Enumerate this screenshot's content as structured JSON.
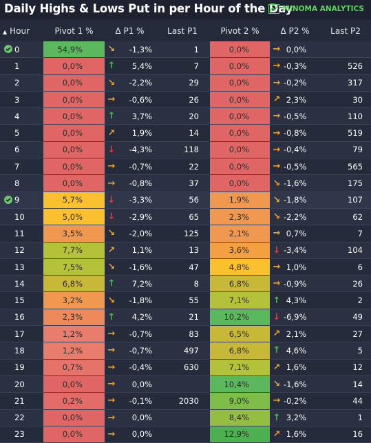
{
  "title": "Daily Highs & Lows Put in per Hour of the Day",
  "brand": "MINOMA ANALYTICS",
  "colors": {
    "red": "#e06666",
    "salmon": "#e87d6e",
    "orange": "#f09850",
    "yellow": "#fbc02d",
    "olive": "#b4c23a",
    "green": "#5cb85c",
    "teal": "#3fa9b5"
  },
  "columns": [
    "Hour",
    "Pivot 1 %",
    "Δ P1 %",
    "Last P1",
    "Pivot 2 %",
    "Δ P2 %",
    "Last P2"
  ],
  "rows": [
    {
      "hour": "0",
      "check": true,
      "p1": "54,9%",
      "p1c": "#5cb85c",
      "a1": "↘",
      "d1": "-1,3%",
      "l1": "1",
      "p2": "0,0%",
      "p2c": "#e06666",
      "a2": "→",
      "d2": "0,0%",
      "l2": ""
    },
    {
      "hour": "1",
      "check": false,
      "p1": "0,0%",
      "p1c": "#e06666",
      "a1": "↑",
      "d1": "5,4%",
      "l1": "7",
      "p2": "0,0%",
      "p2c": "#e06666",
      "a2": "→",
      "d2": "-0,3%",
      "l2": "526"
    },
    {
      "hour": "2",
      "check": false,
      "p1": "0,0%",
      "p1c": "#e06666",
      "a1": "↘",
      "d1": "-2,2%",
      "l1": "29",
      "p2": "0,0%",
      "p2c": "#e06666",
      "a2": "→",
      "d2": "-0,2%",
      "l2": "317"
    },
    {
      "hour": "3",
      "check": false,
      "p1": "0,0%",
      "p1c": "#e06666",
      "a1": "→",
      "d1": "-0,6%",
      "l1": "26",
      "p2": "0,0%",
      "p2c": "#e06666",
      "a2": "↗",
      "d2": "2,3%",
      "l2": "30"
    },
    {
      "hour": "4",
      "check": false,
      "p1": "0,0%",
      "p1c": "#e06666",
      "a1": "↑",
      "d1": "3,7%",
      "l1": "20",
      "p2": "0,0%",
      "p2c": "#e06666",
      "a2": "→",
      "d2": "-0,5%",
      "l2": "110"
    },
    {
      "hour": "5",
      "check": false,
      "p1": "0,0%",
      "p1c": "#e06666",
      "a1": "↗",
      "d1": "1,9%",
      "l1": "14",
      "p2": "0,0%",
      "p2c": "#e06666",
      "a2": "→",
      "d2": "-0,8%",
      "l2": "519"
    },
    {
      "hour": "6",
      "check": false,
      "p1": "0,0%",
      "p1c": "#e06666",
      "a1": "↓",
      "d1": "-4,3%",
      "l1": "118",
      "p2": "0,0%",
      "p2c": "#e06666",
      "a2": "→",
      "d2": "-0,4%",
      "l2": "79"
    },
    {
      "hour": "7",
      "check": false,
      "p1": "0,0%",
      "p1c": "#e06666",
      "a1": "→",
      "d1": "-0,7%",
      "l1": "22",
      "p2": "0,0%",
      "p2c": "#e06666",
      "a2": "→",
      "d2": "-0,5%",
      "l2": "565"
    },
    {
      "hour": "8",
      "check": false,
      "p1": "0,0%",
      "p1c": "#e06666",
      "a1": "→",
      "d1": "-0,8%",
      "l1": "37",
      "p2": "0,0%",
      "p2c": "#e06666",
      "a2": "↘",
      "d2": "-1,6%",
      "l2": "175"
    },
    {
      "hour": "9",
      "check": true,
      "highlight": true,
      "p1": "5,7%",
      "p1c": "#fbc02d",
      "a1": "↓",
      "d1": "-3,3%",
      "l1": "56",
      "p2": "1,9%",
      "p2c": "#f09850",
      "a2": "↘",
      "d2": "-1,8%",
      "l2": "107"
    },
    {
      "hour": "10",
      "check": false,
      "p1": "5,0%",
      "p1c": "#fbc02d",
      "a1": "↓",
      "d1": "-2,9%",
      "l1": "65",
      "p2": "2,3%",
      "p2c": "#f09850",
      "a2": "↘",
      "d2": "-2,2%",
      "l2": "62"
    },
    {
      "hour": "11",
      "check": false,
      "p1": "3,5%",
      "p1c": "#f09850",
      "a1": "↘",
      "d1": "-2,0%",
      "l1": "125",
      "p2": "2,1%",
      "p2c": "#f09850",
      "a2": "→",
      "d2": "0,7%",
      "l2": "7"
    },
    {
      "hour": "12",
      "check": false,
      "p1": "7,7%",
      "p1c": "#b4c23a",
      "a1": "↗",
      "d1": "1,1%",
      "l1": "13",
      "p2": "3,6%",
      "p2c": "#f5a040",
      "a2": "↓",
      "d2": "-3,4%",
      "l2": "104"
    },
    {
      "hour": "13",
      "check": false,
      "p1": "7,5%",
      "p1c": "#b4c23a",
      "a1": "↘",
      "d1": "-1,6%",
      "l1": "47",
      "p2": "4,8%",
      "p2c": "#fbc02d",
      "a2": "→",
      "d2": "1,0%",
      "l2": "6"
    },
    {
      "hour": "14",
      "check": false,
      "p1": "6,8%",
      "p1c": "#c8b838",
      "a1": "↑",
      "d1": "7,2%",
      "l1": "8",
      "p2": "6,8%",
      "p2c": "#c8b838",
      "a2": "→",
      "d2": "-0,9%",
      "l2": "26"
    },
    {
      "hour": "15",
      "check": false,
      "p1": "3,2%",
      "p1c": "#f09850",
      "a1": "↘",
      "d1": "-1,8%",
      "l1": "55",
      "p2": "7,1%",
      "p2c": "#b4c23a",
      "a2": "↑",
      "d2": "4,3%",
      "l2": "2"
    },
    {
      "hour": "16",
      "check": false,
      "p1": "2,3%",
      "p1c": "#ec8a5c",
      "a1": "↑",
      "d1": "4,2%",
      "l1": "21",
      "p2": "10,2%",
      "p2c": "#5cb85c",
      "a2": "↓",
      "d2": "-6,9%",
      "l2": "49"
    },
    {
      "hour": "17",
      "check": false,
      "p1": "1,2%",
      "p1c": "#e87d6e",
      "a1": "→",
      "d1": "-0,7%",
      "l1": "83",
      "p2": "6,5%",
      "p2c": "#c8b838",
      "a2": "↗",
      "d2": "2,1%",
      "l2": "27"
    },
    {
      "hour": "18",
      "check": false,
      "p1": "1,2%",
      "p1c": "#e87d6e",
      "a1": "→",
      "d1": "-0,7%",
      "l1": "497",
      "p2": "6,8%",
      "p2c": "#c8b838",
      "a2": "↑",
      "d2": "4,6%",
      "l2": "5"
    },
    {
      "hour": "19",
      "check": false,
      "p1": "0,7%",
      "p1c": "#e6736a",
      "a1": "→",
      "d1": "-0,4%",
      "l1": "630",
      "p2": "7,1%",
      "p2c": "#b4c23a",
      "a2": "↗",
      "d2": "1,6%",
      "l2": "12"
    },
    {
      "hour": "20",
      "check": false,
      "p1": "0,0%",
      "p1c": "#e06666",
      "a1": "→",
      "d1": "0,0%",
      "l1": "",
      "p2": "10,4%",
      "p2c": "#5cb85c",
      "a2": "↘",
      "d2": "-1,6%",
      "l2": "14"
    },
    {
      "hour": "21",
      "check": false,
      "p1": "0,2%",
      "p1c": "#e36b68",
      "a1": "→",
      "d1": "-0,1%",
      "l1": "2030",
      "p2": "9,0%",
      "p2c": "#7ebd48",
      "a2": "→",
      "d2": "-0,2%",
      "l2": "44"
    },
    {
      "hour": "22",
      "check": false,
      "p1": "0,0%",
      "p1c": "#e06666",
      "a1": "→",
      "d1": "0,0%",
      "l1": "",
      "p2": "8,4%",
      "p2c": "#94be42",
      "a2": "↑",
      "d2": "3,2%",
      "l2": "1"
    },
    {
      "hour": "23",
      "check": false,
      "p1": "0,0%",
      "p1c": "#e06666",
      "a1": "→",
      "d1": "0,0%",
      "l1": "",
      "p2": "12,9%",
      "p2c": "#4caf50",
      "a2": "↗",
      "d2": "1,6%",
      "l2": "16"
    }
  ]
}
